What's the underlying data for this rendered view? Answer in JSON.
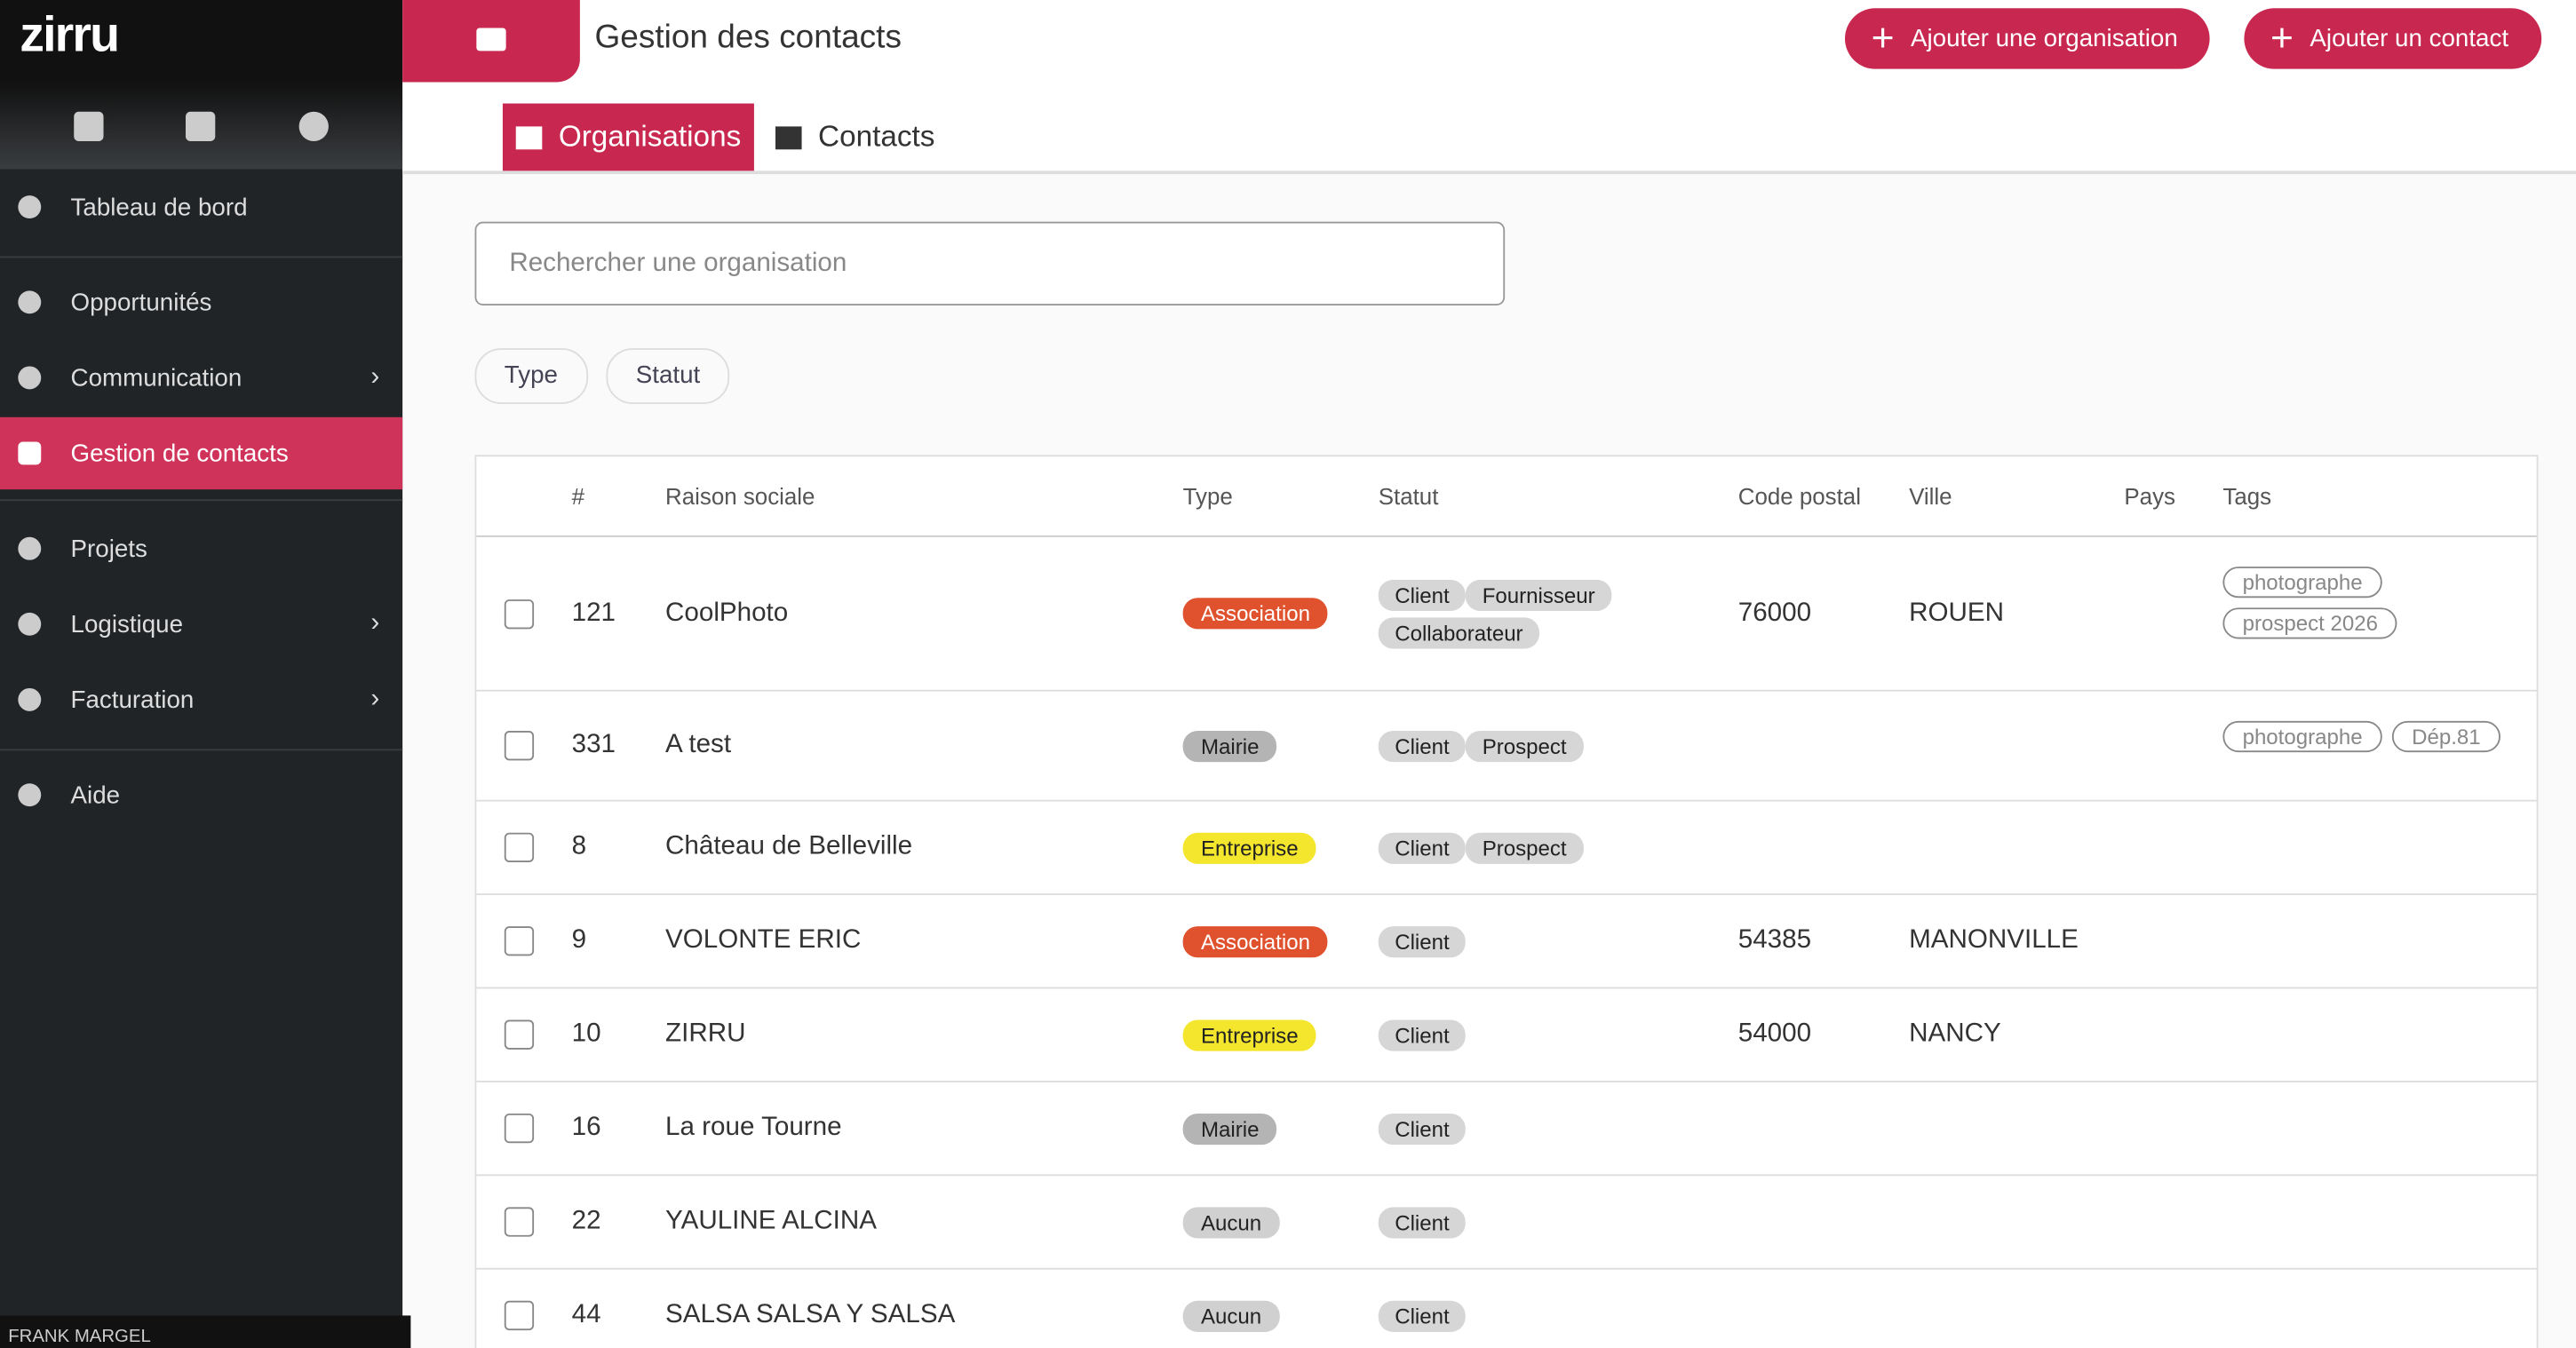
{
  "sidebar": {
    "logo": "zirru",
    "items": [
      {
        "label": "Tableau de bord"
      },
      {
        "label": "Opportunités"
      },
      {
        "label": "Communication",
        "submenu": true
      },
      {
        "label": "Gestion de contacts",
        "active": true
      },
      {
        "label": "Projets"
      },
      {
        "label": "Logistique",
        "submenu": true
      },
      {
        "label": "Facturation",
        "submenu": true
      },
      {
        "label": "Aide"
      }
    ],
    "user": "FRANK MARGEL"
  },
  "header": {
    "title": "Gestion des contacts",
    "buttons": [
      "Ajouter une organisation",
      "Ajouter un contact"
    ]
  },
  "tabs": [
    {
      "label": "Organisations",
      "active": true
    },
    {
      "label": "Contacts"
    }
  ],
  "search": {
    "placeholder": "Rechercher une organisation"
  },
  "filters": [
    "Type",
    "Statut"
  ],
  "table": {
    "columns": [
      "#",
      "Raison sociale",
      "Type",
      "Statut",
      "Code postal",
      "Ville",
      "Pays",
      "Tags"
    ],
    "rows": [
      {
        "id": "121",
        "name": "CoolPhoto",
        "type": "Association",
        "statuses": [
          "Client",
          "Fournisseur",
          "Collaborateur"
        ],
        "postal": "76000",
        "city": "ROUEN",
        "tags": [
          "photographe",
          "prospect 2026"
        ]
      },
      {
        "id": "331",
        "name": "A test",
        "type": "Mairie",
        "statuses": [
          "Client",
          "Prospect"
        ],
        "tags": [
          "photographe",
          "Dép.81"
        ]
      },
      {
        "id": "8",
        "name": "Château de Belleville",
        "type": "Entreprise",
        "statuses": [
          "Client",
          "Prospect"
        ]
      },
      {
        "id": "9",
        "name": "VOLONTE ERIC",
        "type": "Association",
        "statuses": [
          "Client"
        ],
        "postal": "54385",
        "city": "MANONVILLE"
      },
      {
        "id": "10",
        "name": "ZIRRU",
        "type": "Entreprise",
        "statuses": [
          "Client"
        ],
        "postal": "54000",
        "city": "NANCY"
      },
      {
        "id": "16",
        "name": "La roue Tourne",
        "type": "Mairie",
        "statuses": [
          "Client"
        ]
      },
      {
        "id": "22",
        "name": "YAULINE ALCINA",
        "type": "Aucun",
        "statuses": [
          "Client"
        ]
      },
      {
        "id": "44",
        "name": "SALSA SALSA Y SALSA",
        "type": "Aucun",
        "statuses": [
          "Client"
        ]
      }
    ]
  }
}
